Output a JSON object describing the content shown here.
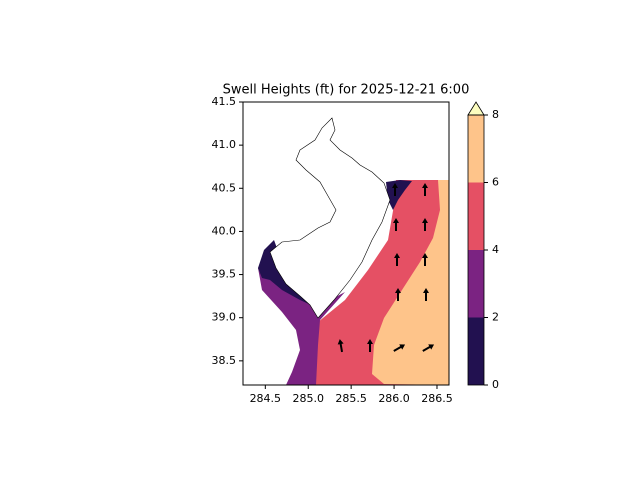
{
  "chart_data": {
    "type": "contour",
    "title": "Swell Heights (ft) for 2025-12-21 6:00",
    "xlim": [
      284.24,
      286.64
    ],
    "ylim": [
      38.22,
      41.5
    ],
    "xticks": [
      284.5,
      {
        "value": 285,
        "label": "285.0"
      },
      285.5,
      {
        "value": 286,
        "label": "286.0"
      },
      286.5
    ],
    "yticks": [
      38.5,
      {
        "value": 39,
        "label": "39.0"
      },
      39.5,
      {
        "value": 40,
        "label": "40.0"
      },
      40.5,
      {
        "value": 41,
        "label": "41.0"
      },
      41.5
    ],
    "colorbar": {
      "levels": [
        0,
        2,
        4,
        6,
        8
      ],
      "colors": [
        "#221150",
        "#7b2382",
        "#e55064",
        "#fec48a"
      ],
      "extend_color": "#fcfdbf"
    }
  }
}
